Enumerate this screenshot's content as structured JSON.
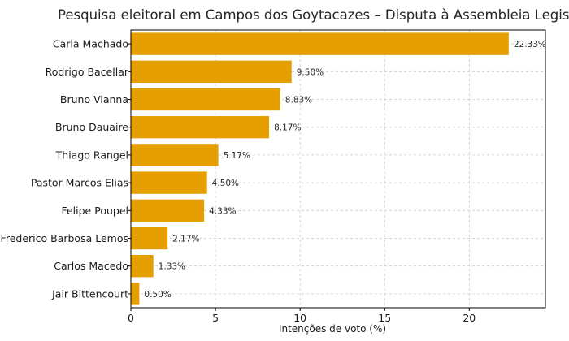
{
  "chart_data": {
    "type": "bar",
    "orientation": "horizontal",
    "title": "Pesquisa eleitoral em Campos dos Goytacazes – Disputa à Assembleia Legislativa",
    "xlabel": "Intenções de voto (%)",
    "ylabel": "",
    "xlim": [
      0,
      24.5
    ],
    "xticks": [
      0,
      5,
      10,
      15,
      20
    ],
    "grid": true,
    "bar_color": "#E69F00",
    "categories": [
      "Carla Machado",
      "Rodrigo Bacellar",
      "Bruno Vianna",
      "Bruno Dauaire",
      "Thiago Rangel",
      "Pastor Marcos Elias",
      "Felipe Poupel",
      "Frederico Barbosa Lemos",
      "Carlos Macedo",
      "Jair Bittencourt"
    ],
    "values": [
      22.33,
      9.5,
      8.83,
      8.17,
      5.17,
      4.5,
      4.33,
      2.17,
      1.33,
      0.5
    ],
    "value_labels": [
      "22.33%",
      "9.50%",
      "8.83%",
      "8.17%",
      "5.17%",
      "4.50%",
      "4.33%",
      "2.17%",
      "1.33%",
      "0.50%"
    ]
  }
}
